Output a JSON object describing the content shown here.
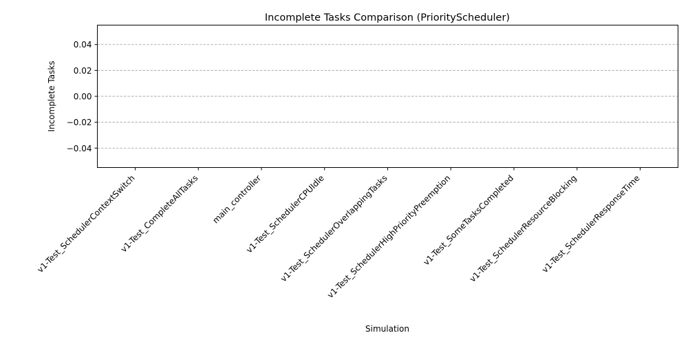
{
  "chart_data": {
    "type": "bar",
    "title": "Incomplete Tasks Comparison (PriorityScheduler)",
    "xlabel": "Simulation",
    "ylabel": "Incomplete Tasks",
    "categories": [
      "v1-Test_SchedulerContextSwitch",
      "v1-Test_CompleteAllTasks",
      "main_controller",
      "v1-Test_SchedulerCPUIdle",
      "v1-Test_SchedulerOverlappingTasks",
      "v1-Test_SchedulerHighPriorityPreemption",
      "v1-Test_SomeTasksCompleted",
      "v1-Test_SchedulerResourceBlocking",
      "v1-Test_SchedulerResponseTime"
    ],
    "values": [
      0,
      0,
      0,
      0,
      0,
      0,
      0,
      0,
      0
    ],
    "ylim": [
      -0.055,
      0.055
    ],
    "yticks": [
      -0.04,
      -0.02,
      0.0,
      0.02,
      0.04
    ],
    "ytick_labels": [
      "−0.04",
      "−0.02",
      "0.00",
      "0.02",
      "0.04"
    ],
    "grid": "y-dashed",
    "grid_color": "#aaaaaa",
    "bar_color": "#1f77b4",
    "legend": "none"
  }
}
